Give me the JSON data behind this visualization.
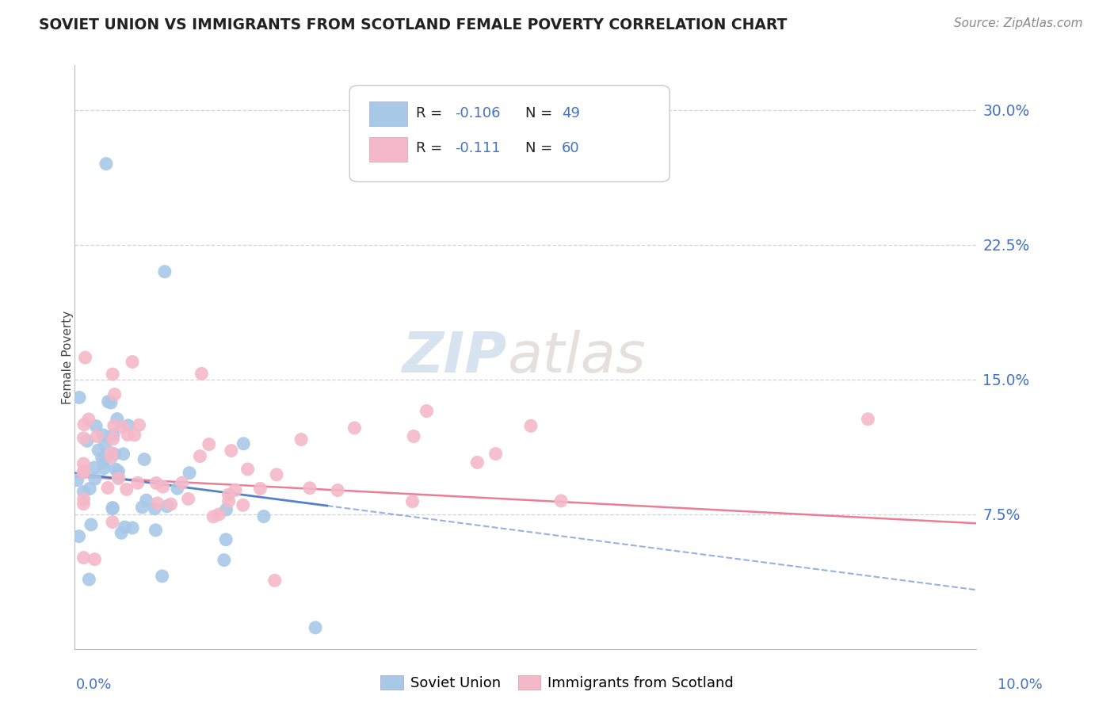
{
  "title": "SOVIET UNION VS IMMIGRANTS FROM SCOTLAND FEMALE POVERTY CORRELATION CHART",
  "source": "Source: ZipAtlas.com",
  "ylabel": "Female Poverty",
  "y_tick_labels": [
    "7.5%",
    "15.0%",
    "22.5%",
    "30.0%"
  ],
  "y_tick_values": [
    0.075,
    0.15,
    0.225,
    0.3
  ],
  "x_range": [
    0.0,
    0.1
  ],
  "y_range": [
    0.0,
    0.325
  ],
  "legend_r_labels": [
    "R =  -0.106",
    "R =   -0.111"
  ],
  "legend_n_labels": [
    "N = 49",
    "N = 60"
  ],
  "legend_labels": [
    "Soviet Union",
    "Immigrants from Scotland"
  ],
  "soviet_color": "#a8c8e8",
  "scotland_color": "#f4b8c8",
  "soviet_line_color": "#4472c4",
  "scotland_line_color": "#e8708a",
  "soviet_patch_color": "#a8c8e8",
  "scotland_patch_color": "#f4b8c8",
  "watermark_zip": "ZIP",
  "watermark_atlas": "atlas",
  "grid_color": "#d0d8e8",
  "top_grid_color": "#c0cce0",
  "mid_grid_color": "#d8dde8",
  "spine_color": "#bbbbbb"
}
